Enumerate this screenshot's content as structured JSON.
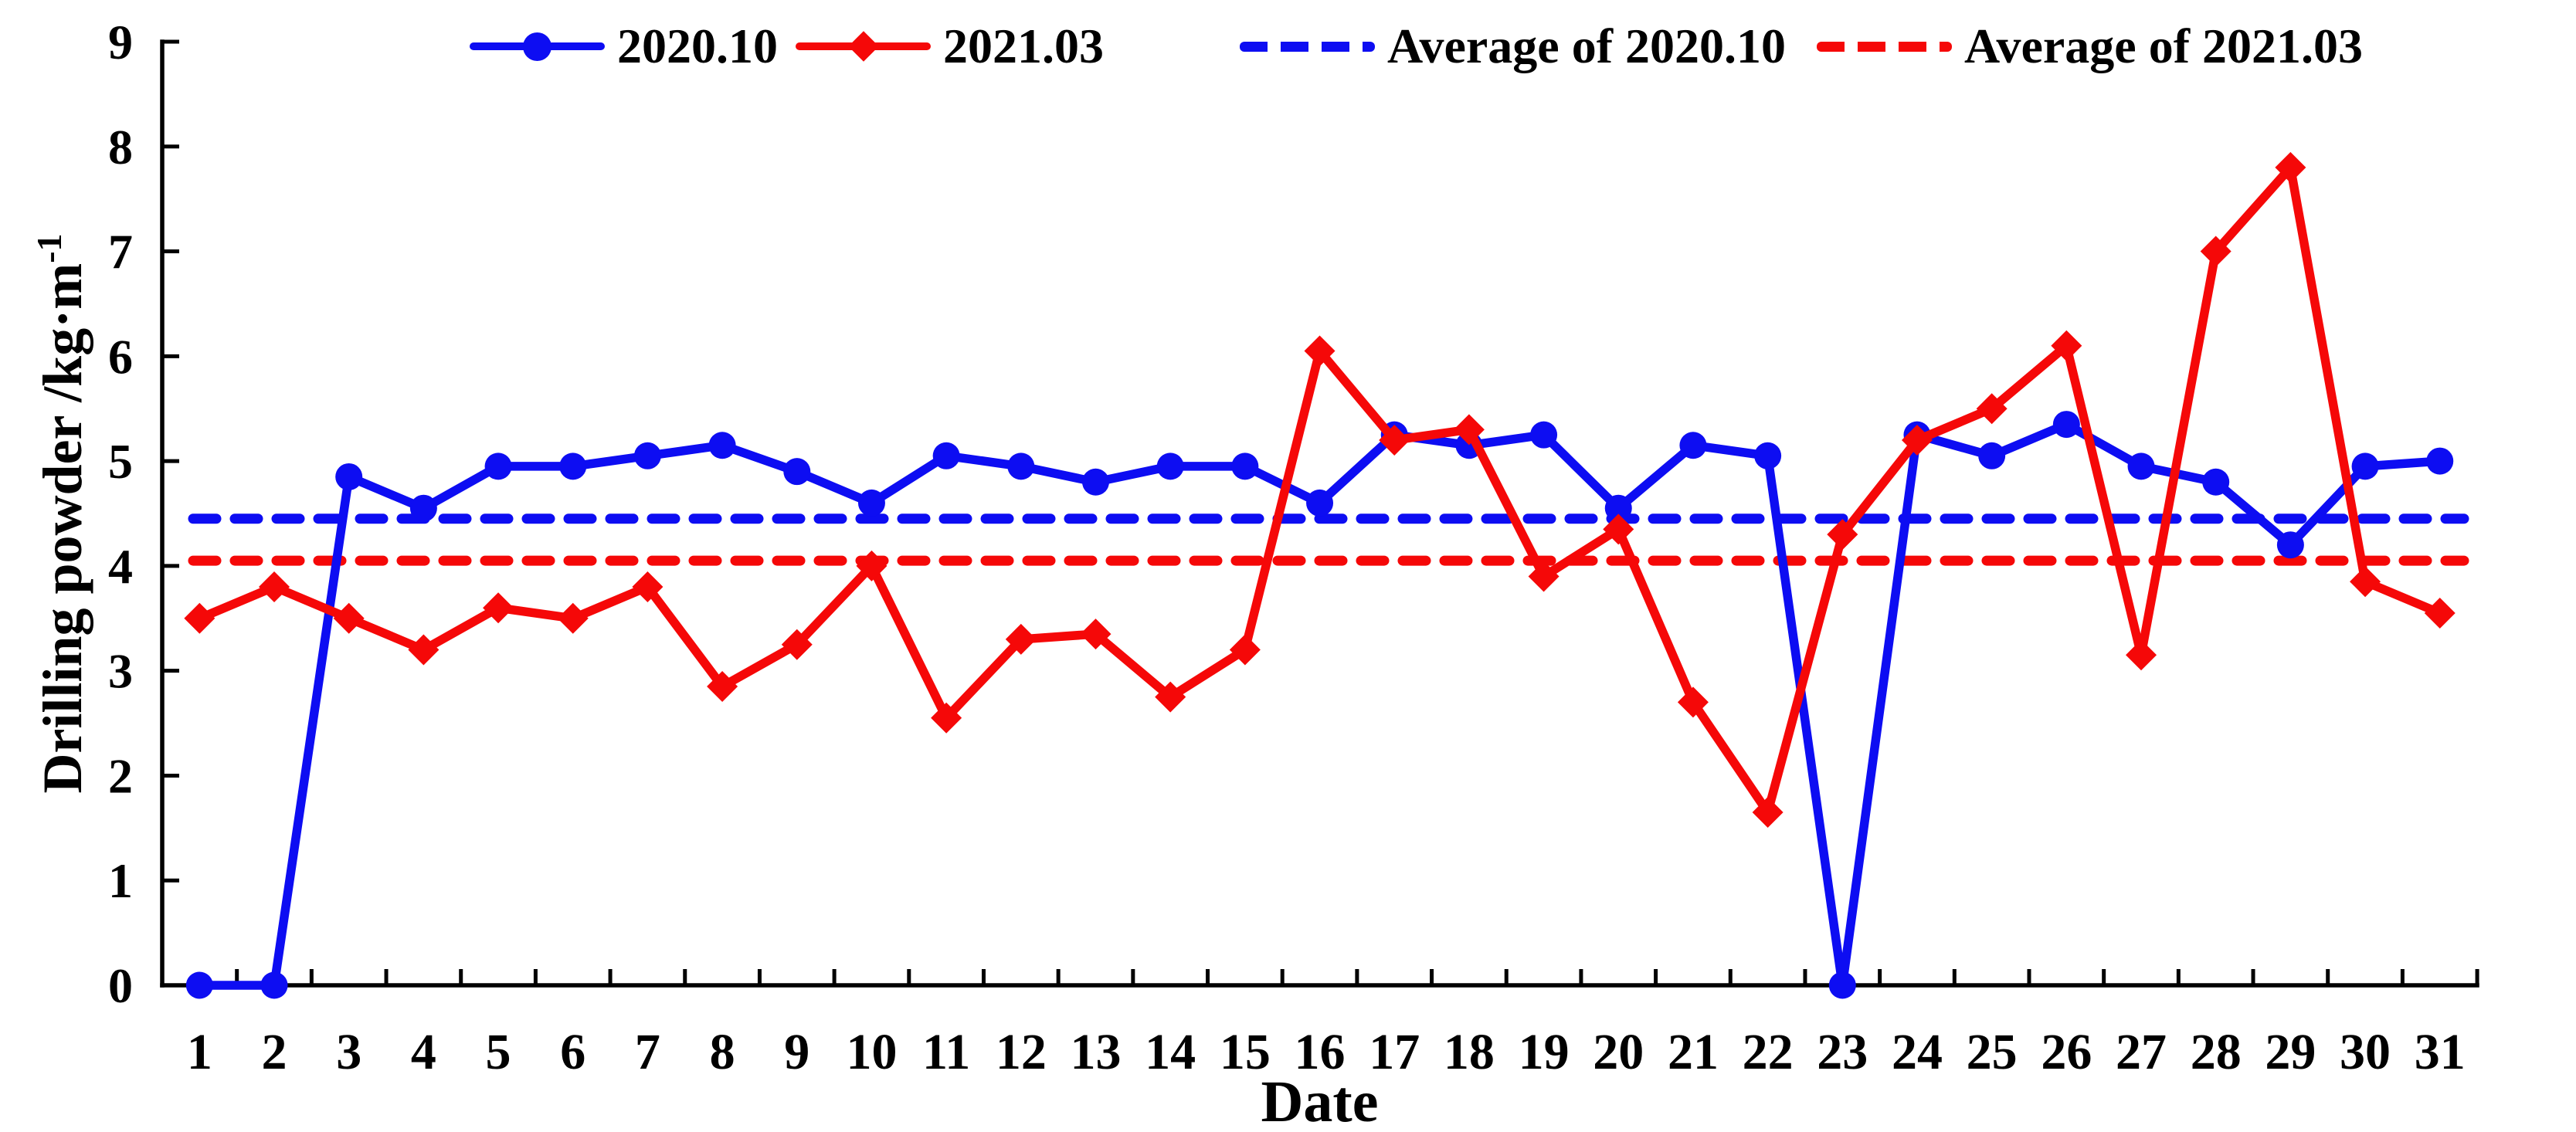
{
  "page": {
    "background": "#ffffff"
  },
  "legend": {
    "items": [
      {
        "label": "2020.10",
        "color": "#0d0df2",
        "sample": "solid-line-circle-marker"
      },
      {
        "label": "2021.03",
        "color": "#f50808",
        "sample": "solid-line-diamond-marker"
      },
      {
        "label": "Average of 2020.10",
        "color": "#0d0df2",
        "sample": "dashed-line"
      },
      {
        "label": "Average of 2021.03",
        "color": "#f50808",
        "sample": "dashed-line"
      }
    ]
  },
  "axes": {
    "x_title": "Date",
    "y_title": "Drilling powder /kg·m",
    "y_title_superscript": "-1"
  },
  "colors": {
    "series_2020_10": "#0d0df2",
    "series_2021_03": "#f50808",
    "axis": "#000000"
  },
  "chart_data": {
    "type": "line",
    "title": "",
    "xlabel": "Date",
    "ylabel": "Drilling powder /kg·m⁻¹",
    "x": [
      1,
      2,
      3,
      4,
      5,
      6,
      7,
      8,
      9,
      10,
      11,
      12,
      13,
      14,
      15,
      16,
      17,
      18,
      19,
      20,
      21,
      22,
      23,
      24,
      25,
      26,
      27,
      28,
      29,
      30,
      31
    ],
    "ylim": [
      0,
      9
    ],
    "yticks": [
      0,
      1,
      2,
      3,
      4,
      5,
      6,
      7,
      8,
      9
    ],
    "grid": false,
    "legend_position": "top",
    "series": [
      {
        "name": "2020.10",
        "type": "line",
        "marker": "circle",
        "color": "#0d0df2",
        "values": [
          0,
          0,
          4.85,
          4.55,
          4.95,
          4.95,
          5.05,
          5.15,
          4.9,
          4.6,
          5.05,
          4.95,
          4.8,
          4.95,
          4.95,
          4.6,
          5.25,
          5.15,
          5.25,
          4.55,
          5.15,
          5.05,
          0,
          5.25,
          5.05,
          5.35,
          4.95,
          4.8,
          4.2,
          4.95,
          5.0
        ]
      },
      {
        "name": "2021.03",
        "type": "line",
        "marker": "diamond",
        "color": "#f50808",
        "values": [
          3.5,
          3.8,
          3.5,
          3.2,
          3.6,
          3.5,
          3.8,
          2.85,
          3.25,
          4.0,
          2.55,
          3.3,
          3.35,
          2.75,
          3.2,
          6.05,
          5.2,
          5.3,
          3.9,
          4.35,
          2.7,
          1.65,
          4.3,
          5.2,
          5.5,
          6.1,
          3.15,
          7.0,
          7.8,
          3.85,
          3.55
        ]
      },
      {
        "name": "Average of 2020.10",
        "type": "horizontal-dashed-line",
        "color": "#0d0df2",
        "value": 4.45
      },
      {
        "name": "Average of 2021.03",
        "type": "horizontal-dashed-line",
        "color": "#f50808",
        "value": 4.05
      }
    ]
  }
}
